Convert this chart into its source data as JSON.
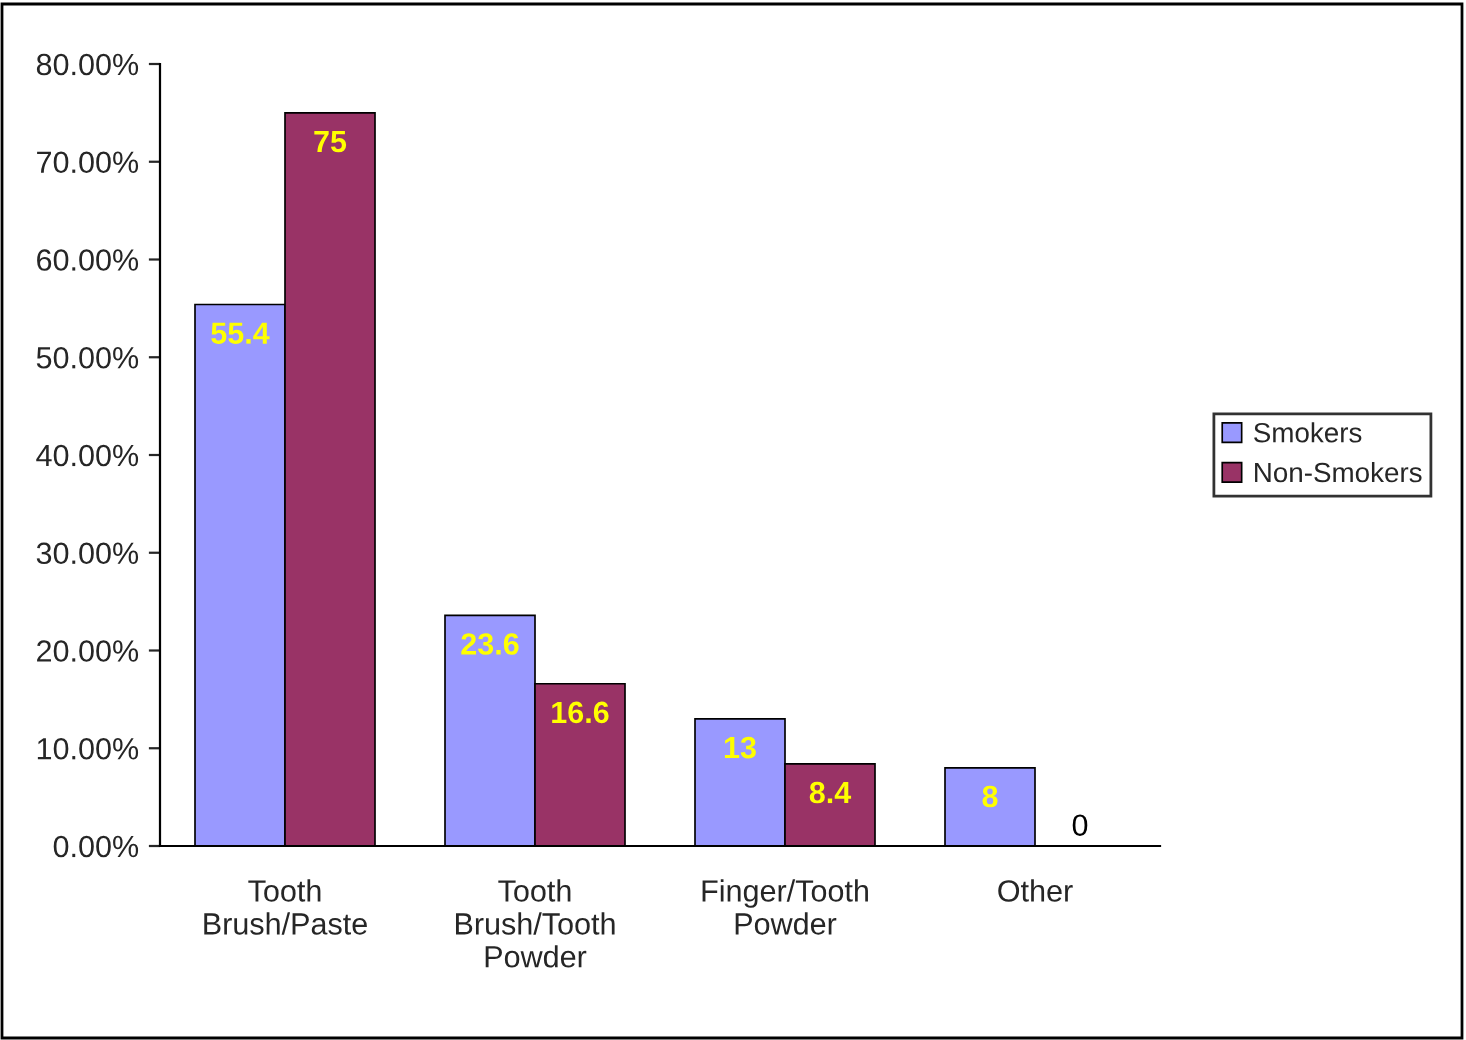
{
  "chart_data": {
    "type": "bar",
    "categories": [
      "Tooth\nBrush/Paste",
      "Tooth\nBrush/Tooth\nPowder",
      "Finger/Tooth\nPowder",
      "Other"
    ],
    "series": [
      {
        "name": "Smokers",
        "color": "#9999ff",
        "values": [
          55.4,
          23.6,
          13,
          8
        ]
      },
      {
        "name": "Non-Smokers",
        "color": "#993366",
        "values": [
          75,
          16.6,
          8.4,
          0
        ]
      }
    ],
    "ylim": [
      0,
      80
    ],
    "yticks": [
      {
        "value": 0,
        "label": "0.00%"
      },
      {
        "value": 10,
        "label": "10.00%"
      },
      {
        "value": 20,
        "label": "20.00%"
      },
      {
        "value": 30,
        "label": "30.00%"
      },
      {
        "value": 40,
        "label": "40.00%"
      },
      {
        "value": 50,
        "label": "50.00%"
      },
      {
        "value": 60,
        "label": "60.00%"
      },
      {
        "value": 70,
        "label": "70.00%"
      },
      {
        "value": 80,
        "label": "80.00%"
      }
    ],
    "data_labels": true,
    "grid": false,
    "legend": "right"
  }
}
